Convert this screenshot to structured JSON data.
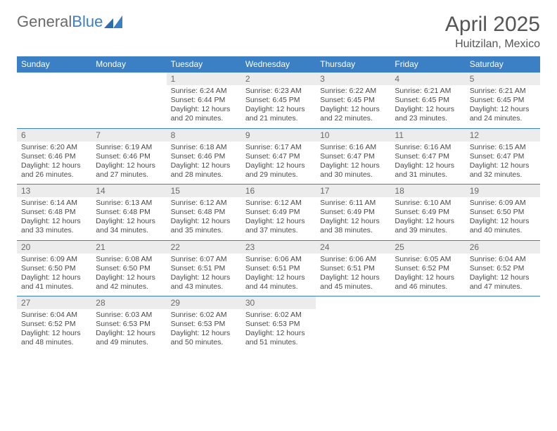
{
  "logo": {
    "text_gray": "General",
    "text_blue": "Blue"
  },
  "title": "April 2025",
  "location": "Huitzilan, Mexico",
  "colors": {
    "header_bg": "#3b7fc4",
    "header_text": "#ffffff",
    "daynum_bg": "#ececec",
    "daynum_text": "#6a6a6a",
    "border": "#3b7fc4",
    "body_text": "#4a4a4a"
  },
  "dow": [
    "Sunday",
    "Monday",
    "Tuesday",
    "Wednesday",
    "Thursday",
    "Friday",
    "Saturday"
  ],
  "weeks": [
    [
      null,
      null,
      {
        "n": "1",
        "sr": "Sunrise: 6:24 AM",
        "ss": "Sunset: 6:44 PM",
        "d1": "Daylight: 12 hours",
        "d2": "and 20 minutes."
      },
      {
        "n": "2",
        "sr": "Sunrise: 6:23 AM",
        "ss": "Sunset: 6:45 PM",
        "d1": "Daylight: 12 hours",
        "d2": "and 21 minutes."
      },
      {
        "n": "3",
        "sr": "Sunrise: 6:22 AM",
        "ss": "Sunset: 6:45 PM",
        "d1": "Daylight: 12 hours",
        "d2": "and 22 minutes."
      },
      {
        "n": "4",
        "sr": "Sunrise: 6:21 AM",
        "ss": "Sunset: 6:45 PM",
        "d1": "Daylight: 12 hours",
        "d2": "and 23 minutes."
      },
      {
        "n": "5",
        "sr": "Sunrise: 6:21 AM",
        "ss": "Sunset: 6:45 PM",
        "d1": "Daylight: 12 hours",
        "d2": "and 24 minutes."
      }
    ],
    [
      {
        "n": "6",
        "sr": "Sunrise: 6:20 AM",
        "ss": "Sunset: 6:46 PM",
        "d1": "Daylight: 12 hours",
        "d2": "and 26 minutes."
      },
      {
        "n": "7",
        "sr": "Sunrise: 6:19 AM",
        "ss": "Sunset: 6:46 PM",
        "d1": "Daylight: 12 hours",
        "d2": "and 27 minutes."
      },
      {
        "n": "8",
        "sr": "Sunrise: 6:18 AM",
        "ss": "Sunset: 6:46 PM",
        "d1": "Daylight: 12 hours",
        "d2": "and 28 minutes."
      },
      {
        "n": "9",
        "sr": "Sunrise: 6:17 AM",
        "ss": "Sunset: 6:47 PM",
        "d1": "Daylight: 12 hours",
        "d2": "and 29 minutes."
      },
      {
        "n": "10",
        "sr": "Sunrise: 6:16 AM",
        "ss": "Sunset: 6:47 PM",
        "d1": "Daylight: 12 hours",
        "d2": "and 30 minutes."
      },
      {
        "n": "11",
        "sr": "Sunrise: 6:16 AM",
        "ss": "Sunset: 6:47 PM",
        "d1": "Daylight: 12 hours",
        "d2": "and 31 minutes."
      },
      {
        "n": "12",
        "sr": "Sunrise: 6:15 AM",
        "ss": "Sunset: 6:47 PM",
        "d1": "Daylight: 12 hours",
        "d2": "and 32 minutes."
      }
    ],
    [
      {
        "n": "13",
        "sr": "Sunrise: 6:14 AM",
        "ss": "Sunset: 6:48 PM",
        "d1": "Daylight: 12 hours",
        "d2": "and 33 minutes."
      },
      {
        "n": "14",
        "sr": "Sunrise: 6:13 AM",
        "ss": "Sunset: 6:48 PM",
        "d1": "Daylight: 12 hours",
        "d2": "and 34 minutes."
      },
      {
        "n": "15",
        "sr": "Sunrise: 6:12 AM",
        "ss": "Sunset: 6:48 PM",
        "d1": "Daylight: 12 hours",
        "d2": "and 35 minutes."
      },
      {
        "n": "16",
        "sr": "Sunrise: 6:12 AM",
        "ss": "Sunset: 6:49 PM",
        "d1": "Daylight: 12 hours",
        "d2": "and 37 minutes."
      },
      {
        "n": "17",
        "sr": "Sunrise: 6:11 AM",
        "ss": "Sunset: 6:49 PM",
        "d1": "Daylight: 12 hours",
        "d2": "and 38 minutes."
      },
      {
        "n": "18",
        "sr": "Sunrise: 6:10 AM",
        "ss": "Sunset: 6:49 PM",
        "d1": "Daylight: 12 hours",
        "d2": "and 39 minutes."
      },
      {
        "n": "19",
        "sr": "Sunrise: 6:09 AM",
        "ss": "Sunset: 6:50 PM",
        "d1": "Daylight: 12 hours",
        "d2": "and 40 minutes."
      }
    ],
    [
      {
        "n": "20",
        "sr": "Sunrise: 6:09 AM",
        "ss": "Sunset: 6:50 PM",
        "d1": "Daylight: 12 hours",
        "d2": "and 41 minutes."
      },
      {
        "n": "21",
        "sr": "Sunrise: 6:08 AM",
        "ss": "Sunset: 6:50 PM",
        "d1": "Daylight: 12 hours",
        "d2": "and 42 minutes."
      },
      {
        "n": "22",
        "sr": "Sunrise: 6:07 AM",
        "ss": "Sunset: 6:51 PM",
        "d1": "Daylight: 12 hours",
        "d2": "and 43 minutes."
      },
      {
        "n": "23",
        "sr": "Sunrise: 6:06 AM",
        "ss": "Sunset: 6:51 PM",
        "d1": "Daylight: 12 hours",
        "d2": "and 44 minutes."
      },
      {
        "n": "24",
        "sr": "Sunrise: 6:06 AM",
        "ss": "Sunset: 6:51 PM",
        "d1": "Daylight: 12 hours",
        "d2": "and 45 minutes."
      },
      {
        "n": "25",
        "sr": "Sunrise: 6:05 AM",
        "ss": "Sunset: 6:52 PM",
        "d1": "Daylight: 12 hours",
        "d2": "and 46 minutes."
      },
      {
        "n": "26",
        "sr": "Sunrise: 6:04 AM",
        "ss": "Sunset: 6:52 PM",
        "d1": "Daylight: 12 hours",
        "d2": "and 47 minutes."
      }
    ],
    [
      {
        "n": "27",
        "sr": "Sunrise: 6:04 AM",
        "ss": "Sunset: 6:52 PM",
        "d1": "Daylight: 12 hours",
        "d2": "and 48 minutes."
      },
      {
        "n": "28",
        "sr": "Sunrise: 6:03 AM",
        "ss": "Sunset: 6:53 PM",
        "d1": "Daylight: 12 hours",
        "d2": "and 49 minutes."
      },
      {
        "n": "29",
        "sr": "Sunrise: 6:02 AM",
        "ss": "Sunset: 6:53 PM",
        "d1": "Daylight: 12 hours",
        "d2": "and 50 minutes."
      },
      {
        "n": "30",
        "sr": "Sunrise: 6:02 AM",
        "ss": "Sunset: 6:53 PM",
        "d1": "Daylight: 12 hours",
        "d2": "and 51 minutes."
      },
      null,
      null,
      null
    ]
  ]
}
